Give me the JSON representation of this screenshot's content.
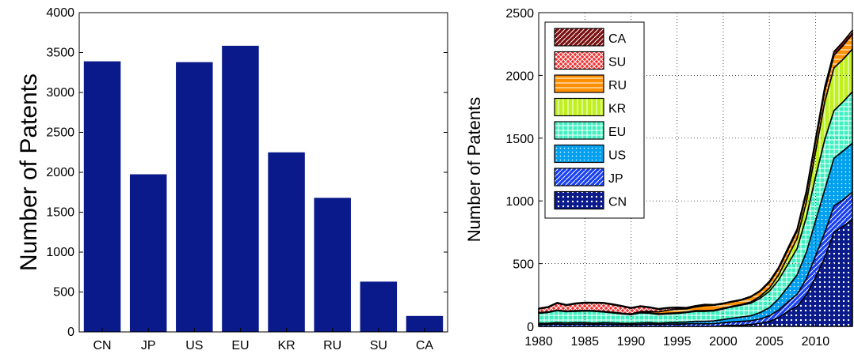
{
  "chart_data": [
    {
      "type": "bar",
      "title": "",
      "xlabel": "",
      "ylabel": "Number of Patents",
      "categories": [
        "CN",
        "JP",
        "US",
        "EU",
        "KR",
        "RU",
        "SU",
        "CA"
      ],
      "values": [
        3390,
        1975,
        3380,
        3585,
        2250,
        1680,
        630,
        200
      ],
      "ylim": [
        0,
        4000
      ],
      "yticks": [
        "0",
        "500",
        "1000",
        "1500",
        "2000",
        "2500",
        "3000",
        "3500",
        "4000"
      ],
      "grid": false,
      "colors": {
        "bar": "#0a1a8a"
      }
    },
    {
      "type": "area",
      "stacked": true,
      "title": "",
      "xlabel": "",
      "ylabel": "Number of Patents",
      "x": [
        1980,
        1981,
        1982,
        1983,
        1984,
        1985,
        1986,
        1987,
        1988,
        1989,
        1990,
        1991,
        1992,
        1993,
        1994,
        1995,
        1996,
        1997,
        1998,
        1999,
        2000,
        2001,
        2002,
        2003,
        2004,
        2005,
        2006,
        2007,
        2008,
        2009,
        2010,
        2011,
        2012,
        2013,
        2014
      ],
      "xlim": [
        1980,
        2014
      ],
      "ylim": [
        0,
        2500
      ],
      "xticks": [
        "1980",
        "1985",
        "1990",
        "1995",
        "2000",
        "2005",
        "2010"
      ],
      "yticks": [
        "0",
        "500",
        "1000",
        "1500",
        "2000",
        "2500"
      ],
      "grid": true,
      "legend": "top-left",
      "series": [
        {
          "name": "CN",
          "color": "#0a1a8a",
          "values": [
            0,
            0,
            0,
            0,
            0,
            0,
            0,
            0,
            0,
            0,
            0,
            0,
            0,
            0,
            0,
            0,
            0,
            0,
            0,
            0,
            5,
            8,
            10,
            15,
            25,
            40,
            70,
            120,
            160,
            250,
            390,
            550,
            750,
            800,
            850
          ]
        },
        {
          "name": "JP",
          "color": "#1840f0",
          "values": [
            15,
            16,
            18,
            16,
            18,
            18,
            16,
            18,
            16,
            15,
            14,
            16,
            18,
            16,
            18,
            18,
            20,
            22,
            20,
            22,
            25,
            28,
            30,
            30,
            35,
            45,
            60,
            75,
            95,
            130,
            170,
            200,
            210,
            210,
            220
          ]
        },
        {
          "name": "US",
          "color": "#00a0f0",
          "values": [
            10,
            10,
            12,
            12,
            12,
            12,
            10,
            12,
            12,
            10,
            10,
            12,
            12,
            10,
            12,
            15,
            15,
            18,
            20,
            22,
            25,
            30,
            35,
            40,
            50,
            65,
            90,
            120,
            155,
            210,
            280,
            340,
            380,
            390,
            390
          ]
        },
        {
          "name": "EU",
          "color": "#40f0c0",
          "values": [
            80,
            85,
            95,
            90,
            90,
            92,
            95,
            85,
            80,
            75,
            70,
            80,
            75,
            70,
            70,
            70,
            75,
            80,
            80,
            80,
            85,
            90,
            95,
            100,
            115,
            130,
            150,
            180,
            210,
            280,
            350,
            400,
            380,
            390,
            410
          ]
        },
        {
          "name": "KR",
          "color": "#c0f020",
          "values": [
            5,
            5,
            5,
            5,
            5,
            5,
            5,
            5,
            5,
            5,
            5,
            5,
            5,
            5,
            5,
            5,
            5,
            5,
            5,
            5,
            5,
            5,
            5,
            10,
            15,
            25,
            40,
            60,
            80,
            120,
            200,
            300,
            340,
            340,
            340
          ]
        },
        {
          "name": "RU",
          "color": "#ff9000",
          "values": [
            0,
            0,
            0,
            0,
            0,
            0,
            0,
            0,
            0,
            0,
            0,
            5,
            10,
            15,
            25,
            30,
            25,
            30,
            40,
            40,
            35,
            35,
            35,
            40,
            40,
            45,
            50,
            55,
            60,
            70,
            80,
            90,
            100,
            110,
            120
          ]
        },
        {
          "name": "SU",
          "color": "#f03030",
          "values": [
            30,
            35,
            55,
            45,
            55,
            60,
            60,
            65,
            60,
            55,
            45,
            40,
            30,
            20,
            15,
            10,
            5,
            5,
            5,
            0,
            0,
            0,
            0,
            0,
            0,
            0,
            0,
            0,
            0,
            0,
            0,
            0,
            0,
            0,
            0
          ]
        },
        {
          "name": "CA",
          "color": "#7a1010",
          "values": [
            5,
            5,
            5,
            5,
            5,
            5,
            5,
            5,
            5,
            5,
            5,
            5,
            5,
            5,
            5,
            5,
            5,
            5,
            5,
            5,
            5,
            5,
            5,
            5,
            5,
            10,
            10,
            15,
            15,
            20,
            25,
            30,
            30,
            30,
            30
          ]
        }
      ]
    }
  ]
}
